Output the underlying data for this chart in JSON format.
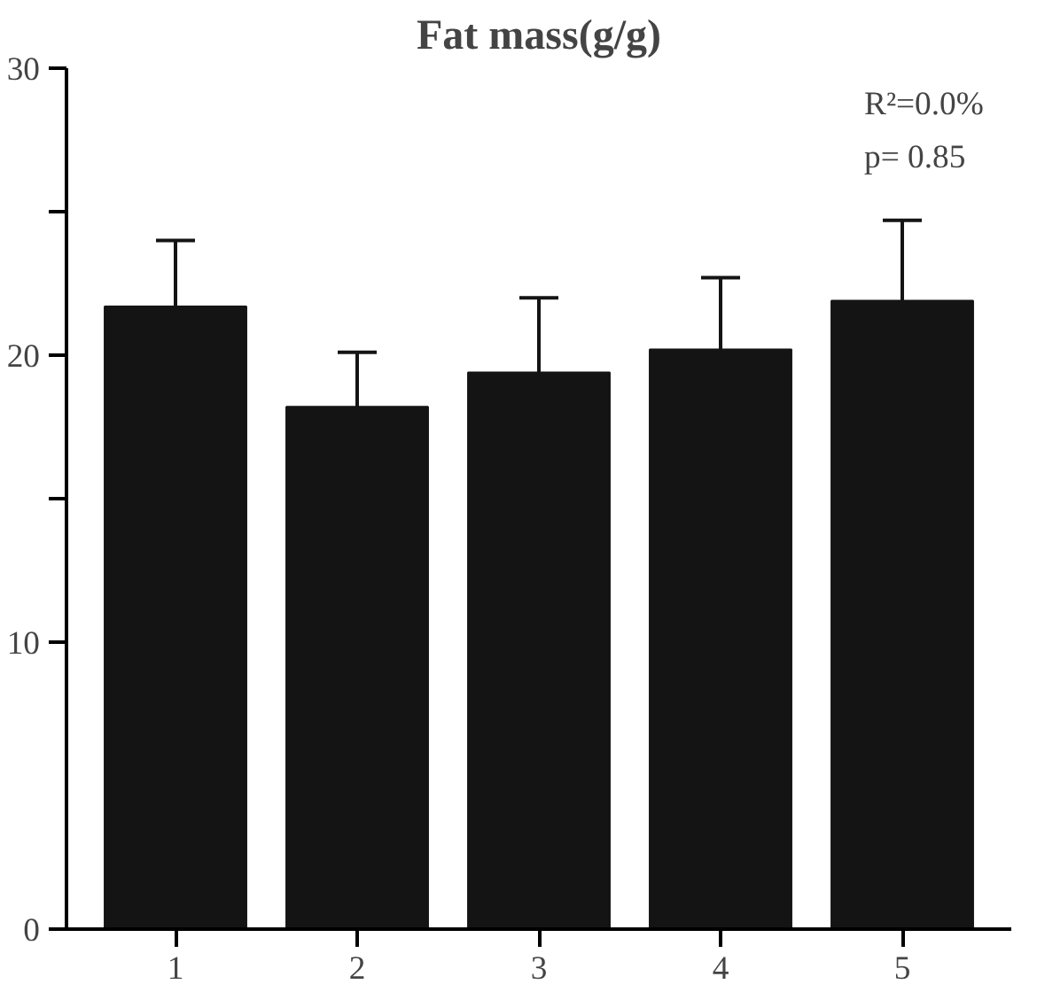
{
  "chart_data": {
    "type": "bar",
    "title": "Fat mass(g/g)",
    "categories": [
      "1",
      "2",
      "3",
      "4",
      "5"
    ],
    "values": [
      21.7,
      18.2,
      19.4,
      20.2,
      21.9
    ],
    "errors": [
      [
        21.7,
        24.0
      ],
      [
        18.2,
        20.1
      ],
      [
        19.4,
        22.0
      ],
      [
        20.2,
        22.7
      ],
      [
        21.9,
        24.7
      ]
    ],
    "color": "#141414",
    "ylim": [
      0,
      30
    ],
    "yticks": [
      0,
      10,
      {
        "value": 15,
        "label": null
      },
      20,
      {
        "value": 25,
        "label": null
      },
      30
    ],
    "annotations": [
      "R²=0.0%",
      "p= 0.85"
    ],
    "grid": false
  }
}
